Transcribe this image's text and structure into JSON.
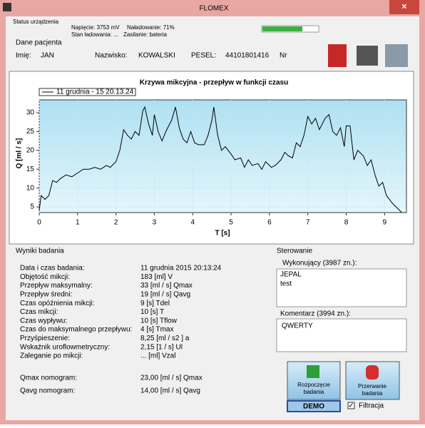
{
  "window": {
    "title": "FLOMEX"
  },
  "status": {
    "heading": "Status urządzenia",
    "voltage": "Napięcie: 3753 mV",
    "charge": "Naładowanie: 71%",
    "charging": "Stan ładowania: ...",
    "power": "Zasilanie: bateria"
  },
  "patient": {
    "heading": "Dane pacjenta",
    "first_name_label": "Imię:",
    "first_name": "JAN",
    "last_name_label": "Nazwisko:",
    "last_name": "KOWALSKI",
    "pesel_label": "PESEL:",
    "pesel": "44101801416",
    "nr_label": "Nr"
  },
  "chart_data": {
    "type": "line",
    "title": "Krzywa mikcyjna - przepływ w funkcji czasu",
    "x_label": "T [s]",
    "y_label": "Q [ml / s]",
    "xlim": [
      0,
      9.57
    ],
    "ylim": [
      3.5,
      33.4
    ],
    "xticks": [
      0,
      1,
      2,
      3,
      4,
      5,
      6,
      7,
      8,
      9
    ],
    "yticks": [
      5,
      10,
      15,
      20,
      25,
      30
    ],
    "grid": true,
    "series": [
      {
        "name": "11 grudnia - 15 20.13.24",
        "color": "#000000",
        "x": [
          0,
          0.05,
          0.15,
          0.25,
          0.35,
          0.45,
          0.55,
          0.7,
          0.85,
          1.0,
          1.15,
          1.3,
          1.45,
          1.6,
          1.75,
          1.85,
          2.0,
          2.1,
          2.2,
          2.3,
          2.4,
          2.5,
          2.6,
          2.7,
          2.75,
          2.85,
          2.95,
          3.0,
          3.1,
          3.2,
          3.3,
          3.45,
          3.55,
          3.65,
          3.75,
          3.85,
          3.95,
          4.05,
          4.15,
          4.3,
          4.4,
          4.5,
          4.55,
          4.65,
          4.75,
          4.85,
          5.0,
          5.1,
          5.25,
          5.35,
          5.45,
          5.55,
          5.7,
          5.8,
          5.9,
          6.05,
          6.15,
          6.3,
          6.4,
          6.5,
          6.6,
          6.7,
          6.8,
          6.9,
          7.0,
          7.1,
          7.2,
          7.3,
          7.45,
          7.55,
          7.65,
          7.75,
          7.85,
          7.95,
          8.0,
          8.1,
          8.2,
          8.3,
          8.45,
          8.55,
          8.65,
          8.75,
          8.85,
          8.95,
          9.05,
          9.2,
          9.35,
          9.45
        ],
        "values": [
          4,
          8,
          7,
          8,
          12,
          11.5,
          12.5,
          13.5,
          13,
          14,
          15,
          15,
          15.5,
          15,
          16,
          15.5,
          17,
          20,
          25.5,
          24,
          23,
          25,
          24,
          30.5,
          31.5,
          27,
          24,
          29.5,
          25,
          22.5,
          25,
          28,
          31.5,
          26,
          23,
          22,
          25,
          22,
          21.5,
          21.5,
          24,
          28,
          31.5,
          24,
          20,
          21,
          19,
          17.5,
          18,
          15.5,
          17.5,
          16,
          16.5,
          15,
          17,
          15.5,
          16,
          17.5,
          19.5,
          18.5,
          18,
          22,
          21,
          24,
          29,
          27,
          28.5,
          25.5,
          28.5,
          29.5,
          25,
          24,
          26,
          21,
          26.5,
          26.5,
          17.5,
          20,
          18.5,
          16,
          17.5,
          13.5,
          10.5,
          11.5,
          8,
          6,
          4.5,
          3.5
        ]
      }
    ]
  },
  "results": {
    "heading": "Wyniki badania",
    "rows": [
      [
        "Data i czas badania:",
        "11 grudnia 2015  20:13:24"
      ],
      [
        "Objętość mikcji:",
        "183 [ml] V"
      ],
      [
        "Przepływ maksymalny:",
        "33 [ml / s] Qmax"
      ],
      [
        "Przepływ średni:",
        "19 [ml / s] Qavg"
      ],
      [
        "Czas opóźnienia mikcji:",
        "9 [s] Tdel"
      ],
      [
        "Czas mikcji:",
        "10 [s] T"
      ],
      [
        "Czas wypływu:",
        "10 [s] Tflow"
      ],
      [
        "Czas do maksymalnego przepływu:",
        "4 [s] Tmax"
      ],
      [
        "Przyśpieszenie:",
        "8,25 [ml / s2 ] a"
      ],
      [
        "Wskaźnik uroflowmetryczny:",
        "2,15 [1 / s] Ul"
      ],
      [
        "Zaleganie po mikcji:",
        "... [ml] Vzal"
      ]
    ],
    "nomograms": [
      [
        "Qmax nomogram:",
        "23,00 [ml / s] Qmax"
      ],
      [
        "Qavg nomogram:",
        "14,00 [ml / s] Qavg"
      ]
    ]
  },
  "control": {
    "heading": "Sterowanie",
    "operator_label": "Wykonujący (3987 zn.):",
    "operator_lines": [
      "JEPAL",
      "test"
    ],
    "comment_label": "Komentarz (3994 zn.):",
    "comment": "QWERTY",
    "start": [
      "Rozpoczęcie",
      "badania"
    ],
    "stop": [
      "Przerwanie",
      "badania"
    ],
    "demo": "DEMO",
    "filter": "Filtracja"
  }
}
